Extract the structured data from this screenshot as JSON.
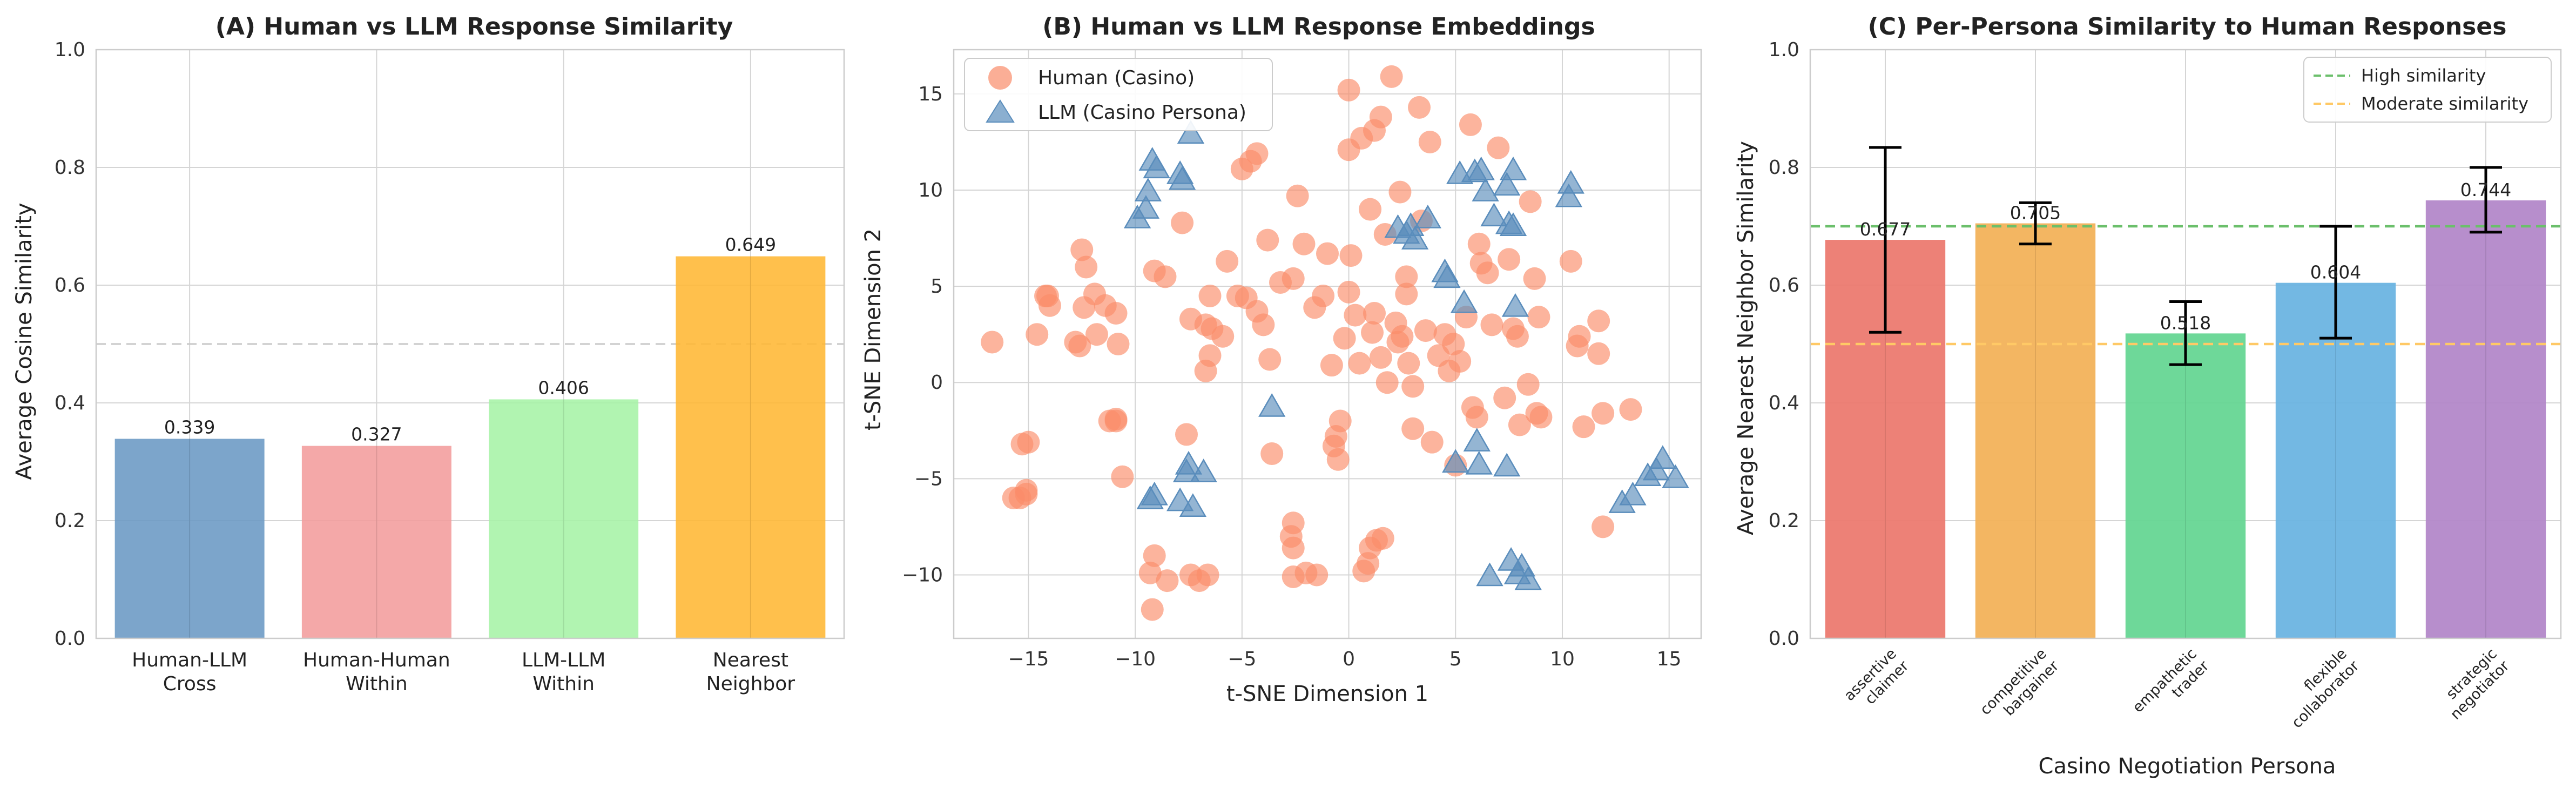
{
  "chart_data": [
    {
      "type": "bar",
      "title": "(A) Human vs LLM Response Similarity",
      "ylabel": "Average Cosine Similarity",
      "ylim": [
        0,
        1.0
      ],
      "yticks": [
        "0.0",
        "0.2",
        "0.4",
        "0.6",
        "0.8",
        "1.0"
      ],
      "yticks_num": [
        0,
        0.2,
        0.4,
        0.6,
        0.8,
        1.0
      ],
      "grid": true,
      "reference_line": 0.5,
      "categories": [
        {
          "line1": "Human-LLM",
          "line2": "Cross",
          "value": 0.339,
          "label": "0.339",
          "color": "#6a99c4"
        },
        {
          "line1": "Human-Human",
          "line2": "Within",
          "value": 0.327,
          "label": "0.327",
          "color": "#f29c9c"
        },
        {
          "line1": "LLM-LLM",
          "line2": "Within",
          "value": 0.406,
          "label": "0.406",
          "color": "#a6f3a6"
        },
        {
          "line1": "Nearest",
          "line2": "Neighbor",
          "value": 0.649,
          "label": "0.649",
          "color": "#ffb733"
        }
      ]
    },
    {
      "type": "scatter",
      "title": "(B) Human vs LLM Response Embeddings",
      "xlabel": "t-SNE Dimension 1",
      "ylabel": "t-SNE Dimension 2",
      "xlim": [
        -18.5,
        16.5
      ],
      "ylim": [
        -13.3,
        17.3
      ],
      "xticks": [
        "−15",
        "−10",
        "−5",
        "0",
        "5",
        "10",
        "15"
      ],
      "xticks_num": [
        -15,
        -10,
        -5,
        0,
        5,
        10,
        15
      ],
      "yticks": [
        "−10",
        "−5",
        "0",
        "5",
        "10",
        "15"
      ],
      "yticks_num": [
        -10,
        -5,
        0,
        5,
        10,
        15
      ],
      "grid": true,
      "legend_position": "upper-left",
      "series": [
        {
          "name": "Human (Casino)",
          "marker": "circle",
          "color": "#fa8c69",
          "points": [
            [
              -16.7,
              2.1
            ],
            [
              -15.3,
              -3.2
            ],
            [
              -15.0,
              -3.1
            ],
            [
              -14.6,
              2.5
            ],
            [
              -14.2,
              4.5
            ],
            [
              -14.0,
              4.0
            ],
            [
              -12.8,
              2.1
            ],
            [
              -12.6,
              1.9
            ],
            [
              -12.4,
              3.9
            ],
            [
              -12.3,
              6.0
            ],
            [
              -12.5,
              6.9
            ],
            [
              -11.9,
              4.6
            ],
            [
              -11.8,
              2.5
            ],
            [
              -11.4,
              4.0
            ],
            [
              -10.9,
              3.6
            ],
            [
              -10.8,
              2.0
            ],
            [
              -10.6,
              -4.9
            ],
            [
              -9.1,
              5.8
            ],
            [
              -8.6,
              5.5
            ],
            [
              -7.8,
              8.3
            ],
            [
              -7.4,
              3.3
            ],
            [
              -6.7,
              3.0
            ],
            [
              -6.4,
              2.8
            ],
            [
              -6.5,
              4.5
            ],
            [
              -6.7,
              0.6
            ],
            [
              -6.5,
              1.4
            ],
            [
              -5.9,
              2.4
            ],
            [
              -5.7,
              6.3
            ],
            [
              -5.2,
              4.5
            ],
            [
              -5.0,
              11.1
            ],
            [
              -4.6,
              11.5
            ],
            [
              -4.3,
              11.9
            ],
            [
              -4.8,
              4.4
            ],
            [
              -4.3,
              3.7
            ],
            [
              -4.0,
              3.0
            ],
            [
              -3.8,
              7.4
            ],
            [
              -3.7,
              1.2
            ],
            [
              -3.6,
              -3.7
            ],
            [
              -3.2,
              5.2
            ],
            [
              -2.6,
              5.4
            ],
            [
              -2.4,
              9.7
            ],
            [
              -2.1,
              7.2
            ],
            [
              -1.6,
              3.9
            ],
            [
              -1.2,
              4.5
            ],
            [
              -1.0,
              6.7
            ],
            [
              -0.8,
              0.9
            ],
            [
              -0.7,
              -3.3
            ],
            [
              -0.6,
              -2.8
            ],
            [
              -0.5,
              -4.0
            ],
            [
              -0.4,
              -2.0
            ],
            [
              -0.2,
              2.3
            ],
            [
              0.0,
              4.7
            ],
            [
              0.1,
              6.6
            ],
            [
              0.0,
              12.1
            ],
            [
              0.0,
              15.2
            ],
            [
              0.3,
              3.5
            ],
            [
              0.5,
              1.0
            ],
            [
              0.6,
              12.7
            ],
            [
              1.0,
              9.0
            ],
            [
              1.1,
              2.6
            ],
            [
              1.2,
              3.6
            ],
            [
              1.2,
              13.1
            ],
            [
              1.5,
              13.8
            ],
            [
              1.5,
              1.3
            ],
            [
              1.7,
              7.7
            ],
            [
              1.8,
              0.0
            ],
            [
              2.0,
              15.9
            ],
            [
              2.2,
              3.1
            ],
            [
              2.3,
              2.1
            ],
            [
              2.4,
              9.9
            ],
            [
              2.5,
              2.4
            ],
            [
              2.7,
              4.6
            ],
            [
              2.7,
              5.5
            ],
            [
              2.8,
              1.0
            ],
            [
              3.0,
              -0.2
            ],
            [
              3.0,
              -2.4
            ],
            [
              3.3,
              14.3
            ],
            [
              3.4,
              8.4
            ],
            [
              3.6,
              2.7
            ],
            [
              3.8,
              12.5
            ],
            [
              3.9,
              -3.1
            ],
            [
              4.2,
              1.4
            ],
            [
              4.5,
              2.5
            ],
            [
              4.7,
              0.6
            ],
            [
              4.9,
              2.0
            ],
            [
              5.0,
              -4.3
            ],
            [
              5.2,
              1.1
            ],
            [
              5.5,
              3.4
            ],
            [
              5.7,
              13.4
            ],
            [
              5.8,
              -1.3
            ],
            [
              6.0,
              -1.8
            ],
            [
              6.1,
              7.2
            ],
            [
              6.2,
              6.2
            ],
            [
              6.5,
              5.7
            ],
            [
              6.7,
              3.0
            ],
            [
              7.0,
              12.2
            ],
            [
              7.3,
              -0.8
            ],
            [
              7.5,
              6.4
            ],
            [
              7.7,
              2.8
            ],
            [
              7.9,
              2.4
            ],
            [
              8.0,
              -2.2
            ],
            [
              8.4,
              -0.1
            ],
            [
              8.5,
              9.4
            ],
            [
              8.7,
              5.4
            ],
            [
              8.8,
              -1.6
            ],
            [
              9.0,
              -1.8
            ],
            [
              8.9,
              3.4
            ],
            [
              10.4,
              6.3
            ],
            [
              10.7,
              1.9
            ],
            [
              10.8,
              2.4
            ],
            [
              11.0,
              -2.3
            ],
            [
              11.7,
              3.2
            ],
            [
              11.7,
              1.5
            ],
            [
              11.9,
              -7.5
            ],
            [
              11.9,
              -1.6
            ],
            [
              13.2,
              -1.4
            ],
            [
              -14.1,
              4.5
            ],
            [
              -10.9,
              -2.0
            ],
            [
              -10.9,
              -1.9
            ],
            [
              -11.2,
              -2.0
            ],
            [
              -7.6,
              -2.7
            ],
            [
              -9.1,
              -9.0
            ],
            [
              -9.3,
              -9.9
            ],
            [
              -8.5,
              -10.3
            ],
            [
              -7.4,
              -10.0
            ],
            [
              -7.0,
              -10.3
            ],
            [
              -6.6,
              -10.0
            ],
            [
              -9.2,
              -11.8
            ],
            [
              -2.6,
              -7.3
            ],
            [
              -2.7,
              -8.0
            ],
            [
              -2.6,
              -8.6
            ],
            [
              -2.6,
              -10.1
            ],
            [
              -2.0,
              -9.9
            ],
            [
              -1.5,
              -10.0
            ],
            [
              0.7,
              -9.8
            ],
            [
              0.9,
              -9.4
            ],
            [
              1.0,
              -8.6
            ],
            [
              1.3,
              -8.2
            ],
            [
              1.6,
              -8.1
            ],
            [
              -15.1,
              -5.6
            ],
            [
              -15.4,
              -6.0
            ],
            [
              -15.7,
              -6.0
            ],
            [
              -15.1,
              -5.8
            ]
          ]
        },
        {
          "name": "LLM (Casino Persona)",
          "marker": "triangle",
          "color": "#5a8dbc",
          "points": [
            [
              -7.4,
              12.9
            ],
            [
              -9.2,
              11.5
            ],
            [
              -9.4,
              9.9
            ],
            [
              -9.5,
              9.0
            ],
            [
              -9.9,
              8.5
            ],
            [
              -9.0,
              11.1
            ],
            [
              -7.9,
              10.8
            ],
            [
              -7.8,
              10.5
            ],
            [
              -7.5,
              -4.3
            ],
            [
              -7.6,
              -4.7
            ],
            [
              -7.9,
              -6.2
            ],
            [
              -7.3,
              -6.5
            ],
            [
              -9.1,
              -5.9
            ],
            [
              -9.3,
              -6.1
            ],
            [
              -6.8,
              -4.7
            ],
            [
              -3.6,
              -1.3
            ],
            [
              2.3,
              8.0
            ],
            [
              2.7,
              7.7
            ],
            [
              2.9,
              8.1
            ],
            [
              3.1,
              7.4
            ],
            [
              3.7,
              8.5
            ],
            [
              4.6,
              5.4
            ],
            [
              4.5,
              5.7
            ],
            [
              5.4,
              4.1
            ],
            [
              5.2,
              10.8
            ],
            [
              5.9,
              10.9
            ],
            [
              6.2,
              11.0
            ],
            [
              6.8,
              8.6
            ],
            [
              6.4,
              9.9
            ],
            [
              7.4,
              10.2
            ],
            [
              7.7,
              11.0
            ],
            [
              7.7,
              8.1
            ],
            [
              7.5,
              8.2
            ],
            [
              7.8,
              3.9
            ],
            [
              6.0,
              -3.1
            ],
            [
              6.1,
              -4.3
            ],
            [
              7.4,
              -4.4
            ],
            [
              5.0,
              -4.2
            ],
            [
              6.6,
              -10.1
            ],
            [
              7.6,
              -9.3
            ],
            [
              7.9,
              -10.0
            ],
            [
              8.4,
              -10.3
            ],
            [
              8.1,
              -9.6
            ],
            [
              10.4,
              10.3
            ],
            [
              10.3,
              9.6
            ],
            [
              12.8,
              -6.3
            ],
            [
              13.3,
              -5.9
            ],
            [
              14.0,
              -4.9
            ],
            [
              14.4,
              -4.6
            ],
            [
              14.7,
              -4.0
            ],
            [
              15.3,
              -5.0
            ]
          ]
        }
      ]
    },
    {
      "type": "bar",
      "title": "(C) Per-Persona Similarity to Human Responses",
      "xlabel": "Casino Negotiation Persona",
      "ylabel": "Average Nearest Neighbor Similarity",
      "ylim": [
        0,
        1.0
      ],
      "yticks": [
        "0.0",
        "0.2",
        "0.4",
        "0.6",
        "0.8",
        "1.0"
      ],
      "yticks_num": [
        0,
        0.2,
        0.4,
        0.6,
        0.8,
        1.0
      ],
      "grid": true,
      "legend_position": "upper-right",
      "reference_lines": [
        {
          "name": "High similarity",
          "value": 0.7,
          "color": "#6bbf6b"
        },
        {
          "name": "Moderate similarity",
          "value": 0.5,
          "color": "#ffc966"
        }
      ],
      "categories": [
        {
          "line1": "assertive",
          "line2": "claimer",
          "value": 0.677,
          "label": "0.677",
          "err": [
            0.52,
            0.834
          ],
          "color": "#ec7a70"
        },
        {
          "line1": "competitive",
          "line2": "bargainer",
          "value": 0.705,
          "label": "0.705",
          "err": [
            0.67,
            0.74
          ],
          "color": "#f2b25a"
        },
        {
          "line1": "empathetic",
          "line2": "trader",
          "value": 0.518,
          "label": "0.518",
          "err": [
            0.465,
            0.572
          ],
          "color": "#66d694"
        },
        {
          "line1": "flexible",
          "line2": "collaborator",
          "value": 0.604,
          "label": "0.604",
          "err": [
            0.51,
            0.7
          ],
          "color": "#6cb4e1"
        },
        {
          "line1": "strategic",
          "line2": "negotiator",
          "value": 0.744,
          "label": "0.744",
          "err": [
            0.69,
            0.8
          ],
          "color": "#b388c9"
        }
      ]
    }
  ]
}
